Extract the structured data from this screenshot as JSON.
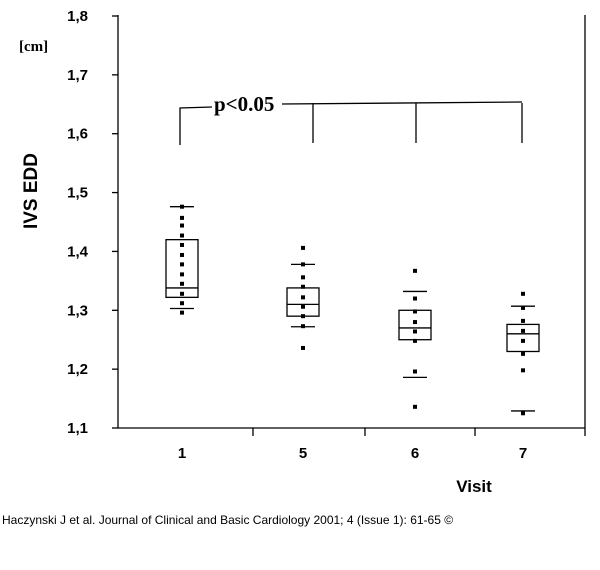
{
  "chart_data": {
    "type": "box",
    "ylabel": "IVS EDD",
    "xlabel": "Visit",
    "unit": "[cm]",
    "ylim": [
      1.1,
      1.8
    ],
    "yticks": [
      "1,1",
      "1,2",
      "1,3",
      "1,4",
      "1,5",
      "1,6",
      "1,7",
      "1,8"
    ],
    "categories": [
      "1",
      "5",
      "6",
      "7"
    ],
    "annotation": "p<0.05",
    "groups": [
      {
        "category": "1",
        "box_low": 1.322,
        "median": 1.338,
        "box_high": 1.42,
        "whisker_low": 1.303,
        "whisker_high": 1.476,
        "points": [
          1.476,
          1.457,
          1.444,
          1.427,
          1.411,
          1.394,
          1.378,
          1.361,
          1.345,
          1.328,
          1.312,
          1.296
        ]
      },
      {
        "category": "5",
        "box_low": 1.29,
        "median": 1.31,
        "box_high": 1.338,
        "whisker_low": 1.272,
        "whisker_high": 1.378,
        "points": [
          1.406,
          1.378,
          1.356,
          1.34,
          1.322,
          1.306,
          1.29,
          1.273,
          1.236
        ]
      },
      {
        "category": "6",
        "box_low": 1.25,
        "median": 1.27,
        "box_high": 1.3,
        "whisker_low": 1.186,
        "whisker_high": 1.332,
        "points": [
          1.367,
          1.32,
          1.298,
          1.28,
          1.264,
          1.248,
          1.196,
          1.136
        ]
      },
      {
        "category": "7",
        "box_low": 1.23,
        "median": 1.26,
        "box_high": 1.276,
        "whisker_low": 1.129,
        "whisker_high": 1.307,
        "points": [
          1.328,
          1.304,
          1.282,
          1.265,
          1.248,
          1.226,
          1.198,
          1.125
        ]
      }
    ]
  },
  "citation": "Haczynski J et al. Journal of Clinical and Basic Cardiology 2001; 4 (Issue 1): 61-65 ©"
}
